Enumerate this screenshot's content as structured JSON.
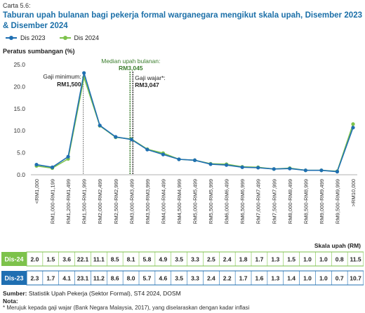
{
  "figure_label": "Carta 5.6:",
  "title": "Taburan upah bulanan bagi pekerja formal warganegara mengikut skala upah, Disember 2023 & Disember 2024",
  "colors": {
    "dis2023": "#1f6fb2",
    "dis2024": "#7dc24b",
    "median": "#3a7d2c",
    "minimum": "#555555",
    "wajar": "#333333",
    "title": "#1b6fa8"
  },
  "chart_data": {
    "type": "line",
    "ylabel": "Peratus sumbangan (%)",
    "xlabel": "Skala upah (RM)",
    "ylim": [
      0,
      25
    ],
    "yticks": [
      "0.0",
      "5.0",
      "10.0",
      "15.0",
      "20.0",
      "25.0"
    ],
    "grid": false,
    "legend": "top-left",
    "categories": [
      "<RM1,000",
      "RM1,000-RM1,199",
      "RM1,200-RM1,499",
      "RM1,500-RM1,999",
      "RM2,000-RM2,499",
      "RM2,500-RM2,999",
      "RM3,000-RM3,499",
      "RM3,500-RM3,999",
      "RM4,000-RM4,499",
      "RM4,500-RM4,999",
      "RM5,000-RM5,499",
      "RM5,500-RM5,999",
      "RM6,000-RM6,499",
      "RM6,500-RM6,999",
      "RM7,000-RM7,499",
      "RM7,500-RM7,999",
      "RM8,000-RM8,499",
      "RM8,500-RM8,999",
      "RM9,000-RM9,499",
      "RM9,500-RM9,999",
      ">RM10,000"
    ],
    "series": [
      {
        "name": "Dis 2023",
        "table_label": "Dis-23",
        "values": [
          2.3,
          1.7,
          4.1,
          23.1,
          11.2,
          8.6,
          8.0,
          5.7,
          4.6,
          3.5,
          3.3,
          2.4,
          2.2,
          1.7,
          1.6,
          1.3,
          1.4,
          1.0,
          1.0,
          0.7,
          10.7
        ]
      },
      {
        "name": "Dis 2024",
        "table_label": "Dis-24",
        "values": [
          2.0,
          1.5,
          3.6,
          22.1,
          11.1,
          8.5,
          8.1,
          5.8,
          4.9,
          3.5,
          3.3,
          2.5,
          2.4,
          1.8,
          1.7,
          1.3,
          1.5,
          1.0,
          1.0,
          0.8,
          11.5
        ]
      }
    ],
    "annotations": [
      {
        "id": "minimum",
        "label": "Gaji minimum:",
        "value": "RM1,500",
        "x": 3
      },
      {
        "id": "median",
        "label": "Median upah bulanan:",
        "value": "RM3,045",
        "x": 6
      },
      {
        "id": "wajar",
        "label": "Gaji wajar*:",
        "value": "RM3,047",
        "x": 6
      }
    ]
  },
  "source_label": "Sumber:",
  "source_text": " Statistik Upah Pekerja (Sektor Formal), ST4 2024, DOSM",
  "note_label": "Nota:",
  "footnote": "* Merujuk kepada gaji wajar (Bank Negara Malaysia, 2017), yang diselaraskan dengan kadar inflasi"
}
